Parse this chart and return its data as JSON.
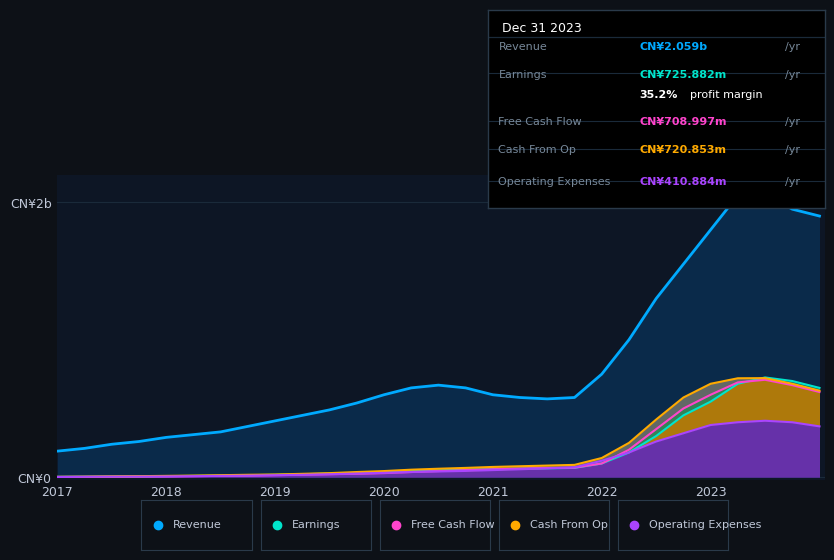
{
  "background_color": "#0d1117",
  "plot_bg_color": "#0d1625",
  "ylabel_top": "CN¥2b",
  "ylabel_bottom": "CN¥0",
  "years": [
    2017,
    2017.25,
    2017.5,
    2017.75,
    2018,
    2018.25,
    2018.5,
    2018.75,
    2019,
    2019.25,
    2019.5,
    2019.75,
    2020,
    2020.25,
    2020.5,
    2020.75,
    2021,
    2021.25,
    2021.5,
    2021.75,
    2022,
    2022.25,
    2022.5,
    2022.75,
    2023,
    2023.25,
    2023.5,
    2023.75,
    2024
  ],
  "revenue": [
    0.19,
    0.21,
    0.24,
    0.26,
    0.29,
    0.31,
    0.33,
    0.37,
    0.41,
    0.45,
    0.49,
    0.54,
    0.6,
    0.65,
    0.67,
    0.65,
    0.6,
    0.58,
    0.57,
    0.58,
    0.75,
    1.0,
    1.3,
    1.55,
    1.8,
    2.05,
    2.06,
    1.95,
    1.9
  ],
  "earnings": [
    0.003,
    0.004,
    0.005,
    0.006,
    0.008,
    0.01,
    0.012,
    0.015,
    0.018,
    0.022,
    0.027,
    0.032,
    0.038,
    0.045,
    0.05,
    0.055,
    0.058,
    0.062,
    0.065,
    0.068,
    0.1,
    0.18,
    0.3,
    0.45,
    0.55,
    0.68,
    0.726,
    0.7,
    0.65
  ],
  "free_cash": [
    0.002,
    0.003,
    0.004,
    0.005,
    0.006,
    0.008,
    0.01,
    0.012,
    0.015,
    0.018,
    0.022,
    0.025,
    0.03,
    0.038,
    0.045,
    0.052,
    0.058,
    0.063,
    0.067,
    0.07,
    0.1,
    0.2,
    0.35,
    0.5,
    0.6,
    0.69,
    0.709,
    0.67,
    0.62
  ],
  "cash_from_op": [
    0.003,
    0.004,
    0.006,
    0.008,
    0.01,
    0.012,
    0.015,
    0.018,
    0.02,
    0.025,
    0.03,
    0.038,
    0.045,
    0.055,
    0.062,
    0.068,
    0.075,
    0.08,
    0.085,
    0.09,
    0.14,
    0.25,
    0.42,
    0.58,
    0.68,
    0.72,
    0.721,
    0.68,
    0.63
  ],
  "op_expenses": [
    0.002,
    0.003,
    0.004,
    0.005,
    0.006,
    0.008,
    0.01,
    0.012,
    0.015,
    0.018,
    0.022,
    0.027,
    0.032,
    0.038,
    0.042,
    0.046,
    0.052,
    0.058,
    0.065,
    0.072,
    0.12,
    0.18,
    0.26,
    0.32,
    0.38,
    0.4,
    0.411,
    0.4,
    0.37
  ],
  "revenue_line_color": "#00aaff",
  "earnings_line_color": "#00e5cc",
  "free_cash_line_color": "#ff44cc",
  "cash_from_op_line_color": "#ffaa00",
  "op_expenses_line_color": "#aa44ff",
  "grid_color": "#1a2a3a",
  "text_color": "#8899aa",
  "tick_label_color": "#c0c8d8",
  "info_box": {
    "title": "Dec 31 2023",
    "rows": [
      {
        "label": "Revenue",
        "value": "CN¥2.059b /yr",
        "value_color": "#00aaff"
      },
      {
        "label": "Earnings",
        "value": "CN¥725.882m /yr",
        "value_color": "#00e5cc"
      },
      {
        "label": "",
        "value": "35.2% profit margin",
        "value_color": "#ffffff",
        "bold_part": "35.2%"
      },
      {
        "label": "Free Cash Flow",
        "value": "CN¥708.997m /yr",
        "value_color": "#ff44cc"
      },
      {
        "label": "Cash From Op",
        "value": "CN¥720.853m /yr",
        "value_color": "#ffaa00"
      },
      {
        "label": "Operating Expenses",
        "value": "CN¥410.884m /yr",
        "value_color": "#aa44ff"
      }
    ]
  },
  "legend_items": [
    {
      "label": "Revenue",
      "color": "#00aaff"
    },
    {
      "label": "Earnings",
      "color": "#00e5cc"
    },
    {
      "label": "Free Cash Flow",
      "color": "#ff44cc"
    },
    {
      "label": "Cash From Op",
      "color": "#ffaa00"
    },
    {
      "label": "Operating Expenses",
      "color": "#aa44ff"
    }
  ]
}
